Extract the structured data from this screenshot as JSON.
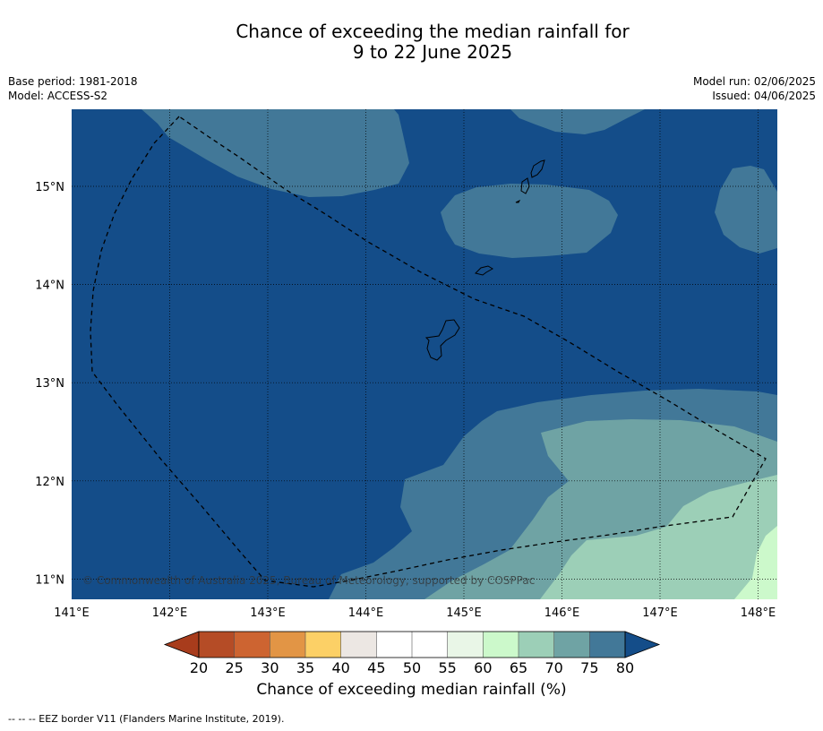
{
  "title": {
    "line1": "Chance of exceeding the median rainfall for",
    "line2": "9 to 22 June 2025"
  },
  "meta": {
    "base_period": "Base period: 1981-2018",
    "model": "Model: ACCESS-S2",
    "model_run": "Model run: 02/06/2025",
    "issued": "Issued: 04/06/2025"
  },
  "copyright": "© Commonwealth of Australia 2025, Bureau of Meteorology, supported by COSPPac",
  "axes": {
    "lon_labels": [
      "141°E",
      "142°E",
      "143°E",
      "144°E",
      "145°E",
      "146°E",
      "147°E",
      "148°E"
    ],
    "lat_labels": [
      "15°N",
      "14°N",
      "13°N",
      "12°N",
      "11°N"
    ]
  },
  "colorbar": {
    "title": "Chance of exceeding median rainfall (%)",
    "ticks": [
      "20",
      "25",
      "30",
      "35",
      "40",
      "45",
      "50",
      "55",
      "60",
      "65",
      "70",
      "75",
      "80"
    ],
    "colors": [
      "#a83c1c",
      "#b54c26",
      "#cd6431",
      "#e29545",
      "#fcd066",
      "#ece7e3",
      "#ffffff",
      "#ffffff",
      "#e9f6e7",
      "#ccf9cb",
      "#9ccfb7",
      "#6fa3a4",
      "#427898",
      "#144d89"
    ]
  },
  "legend_note": "--  --  -- EEZ border V11 (Flanders Marine Institute, 2019)."
}
